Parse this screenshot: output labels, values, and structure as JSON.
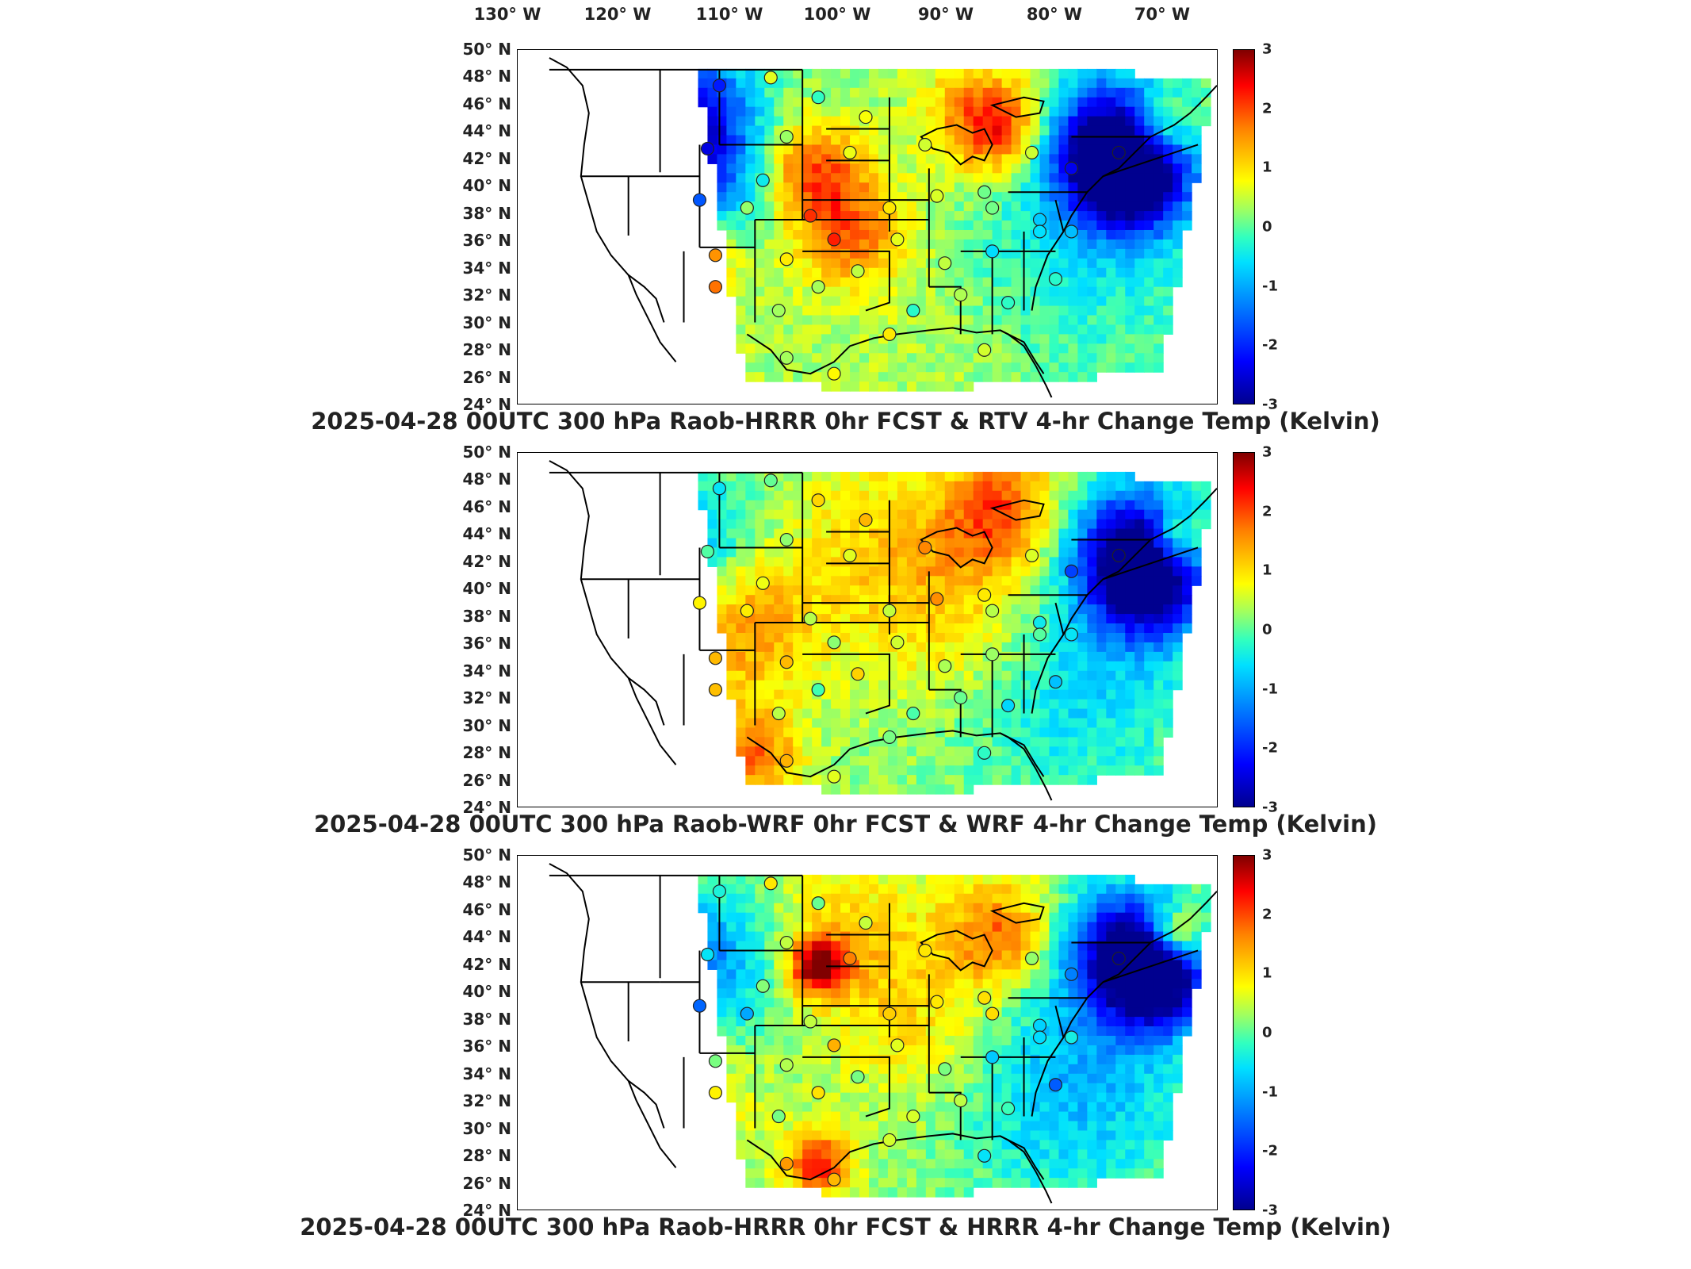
{
  "figure": {
    "lon_labels": [
      "130° W",
      "120° W",
      "110° W",
      "100° W",
      "90° W",
      "80° W",
      "70° W"
    ],
    "lat_labels": [
      "50° N",
      "48° N",
      "46° N",
      "44° N",
      "42° N",
      "40° N",
      "38° N",
      "36° N",
      "34° N",
      "32° N",
      "30° N",
      "28° N",
      "26° N",
      "24° N"
    ],
    "colorbar_ticks": [
      "3",
      "2",
      "1",
      "0",
      "-1",
      "-2",
      "-3"
    ],
    "colorbar_range": [
      -3,
      3
    ],
    "colormap": "jet"
  },
  "panels": [
    {
      "id": "rtv",
      "title": "2025-04-28 00UTC 300 hPa Raob-HRRR 0hr FCST & RTV 4-hr Change Temp (Kelvin)"
    },
    {
      "id": "wrf",
      "title": "2025-04-28 00UTC 300 hPa Raob-WRF 0hr FCST & WRF 4-hr Change Temp (Kelvin)"
    },
    {
      "id": "hrrr",
      "title": "2025-04-28 00UTC 300 hPa Raob-HRRR 0hr FCST & HRRR 4-hr Change Temp (Kelvin)"
    }
  ],
  "colors": {
    "frame": "#000000",
    "land_fill": "#ffffff"
  }
}
